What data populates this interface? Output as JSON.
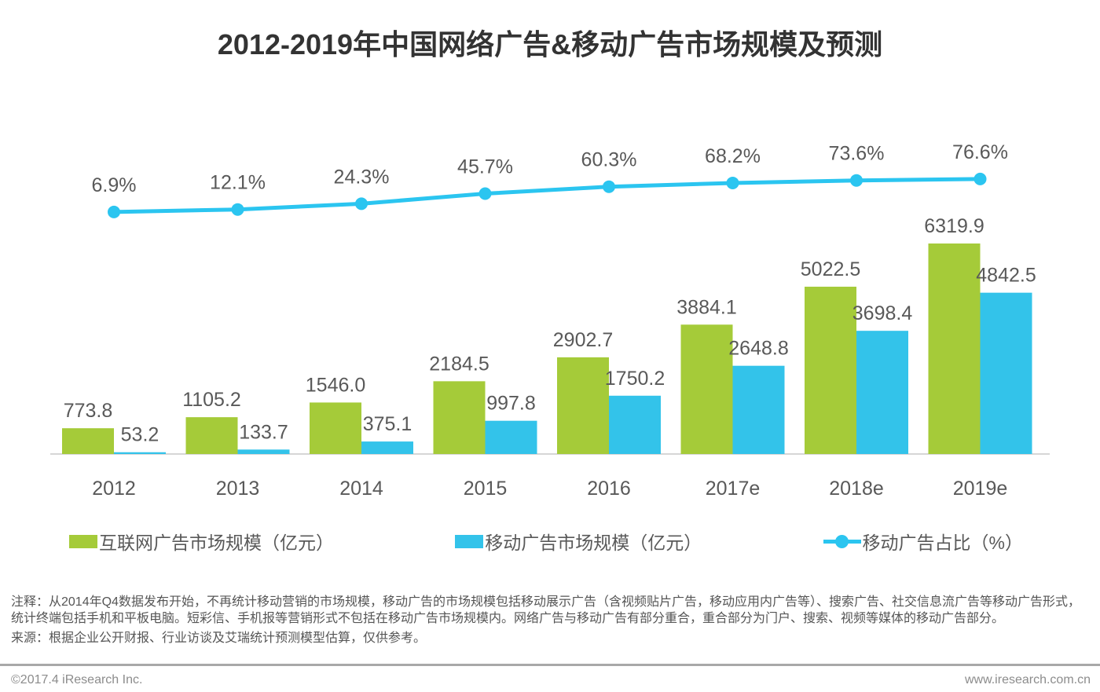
{
  "title": "2012-2019年中国网络广告&移动广告市场规模及预测",
  "chart_data": {
    "type": "combo",
    "categories": [
      "2012",
      "2013",
      "2014",
      "2015",
      "2016",
      "2017e",
      "2018e",
      "2019e"
    ],
    "series": [
      {
        "name": "互联网广告市场规模（亿元）",
        "type": "bar",
        "values": [
          773.8,
          1105.2,
          1546.0,
          2184.5,
          2902.7,
          3884.1,
          5022.5,
          6319.9
        ]
      },
      {
        "name": "移动广告市场规模（亿元）",
        "type": "bar",
        "values": [
          53.2,
          133.7,
          375.1,
          997.8,
          1750.2,
          2648.8,
          3698.4,
          4842.5
        ]
      },
      {
        "name": "移动广告占比（%）",
        "type": "line",
        "unit": "%",
        "values": [
          6.9,
          12.1,
          24.3,
          45.7,
          60.3,
          68.2,
          73.6,
          76.6
        ]
      }
    ],
    "colors": {
      "internet_bar": "#a5cb39",
      "mobile_bar": "#33c3ea",
      "line": "#2bc5f0",
      "label_text": "#595959",
      "axis_line": "#c9c9c9"
    },
    "legend_position": "bottom",
    "grid": false,
    "xlabel": "",
    "ylabel": ""
  },
  "notes": {
    "annotation": "注释：从2014年Q4数据发布开始，不再统计移动营销的市场规模，移动广告的市场规模包括移动展示广告（含视频贴片广告，移动应用内广告等）、搜索广告、社交信息流广告等移动广告形式，统计终端包括手机和平板电脑。短彩信、手机报等营销形式不包括在移动广告市场规模内。网络广告与移动广告有部分重合，重合部分为门户、搜索、视频等媒体的移动广告部分。",
    "source": "来源：根据企业公开财报、行业访谈及艾瑞统计预测模型估算，仅供参考。"
  },
  "footer": {
    "copyright": "©2017.4 iResearch Inc.",
    "website": "www.iresearch.com.cn"
  }
}
